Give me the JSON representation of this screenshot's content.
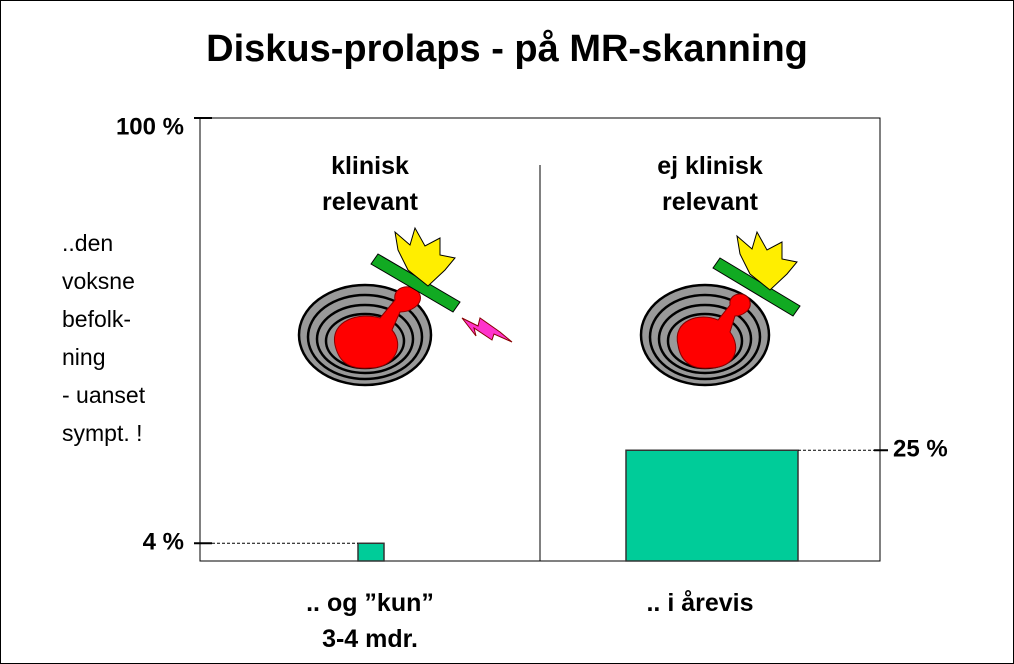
{
  "chart_data": {
    "type": "bar",
    "title": "Diskus-prolaps - på MR-skanning",
    "y_annotation": "..den\nvoksne\nbefolk-\nning\n- uanset\nsympt. !",
    "panel_labels": [
      "klinisk\nrelevant",
      "ej klinisk\nrelevant"
    ],
    "categories": [
      ".. og ”kun”\n3-4  mdr.",
      ".. i årevis"
    ],
    "values": [
      4,
      25
    ],
    "value_labels": [
      "4 %",
      "25 %"
    ],
    "color": "#00cc99",
    "ylim": [
      0,
      100
    ],
    "yticks": [
      {
        "value": 100,
        "label": "100 %"
      }
    ]
  }
}
